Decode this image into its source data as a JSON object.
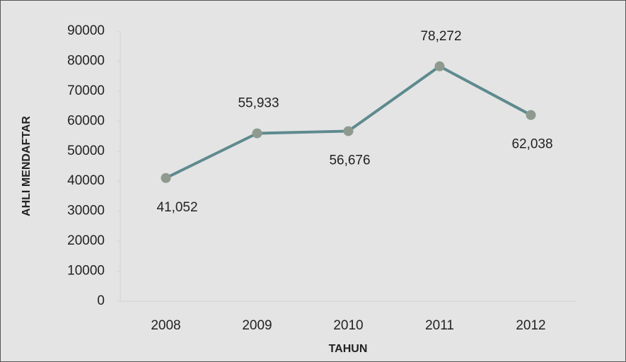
{
  "chart_data": {
    "type": "line",
    "x_label": "TAHUN",
    "y_label": "AHLI MENDAFTAR",
    "categories": [
      "2008",
      "2009",
      "2010",
      "2011",
      "2012"
    ],
    "series": [
      {
        "color": "#5e8a8e",
        "marker_color": "#8e9a8e",
        "values": [
          41052,
          55933,
          56676,
          78272,
          62038
        ],
        "value_labels": [
          "41,052",
          "55,933",
          "56,676",
          "78,272",
          "62,038"
        ]
      }
    ],
    "ylim": [
      0,
      90000
    ],
    "yticks": [
      0,
      10000,
      20000,
      30000,
      40000,
      50000,
      60000,
      70000,
      80000,
      90000
    ],
    "grid": false
  }
}
